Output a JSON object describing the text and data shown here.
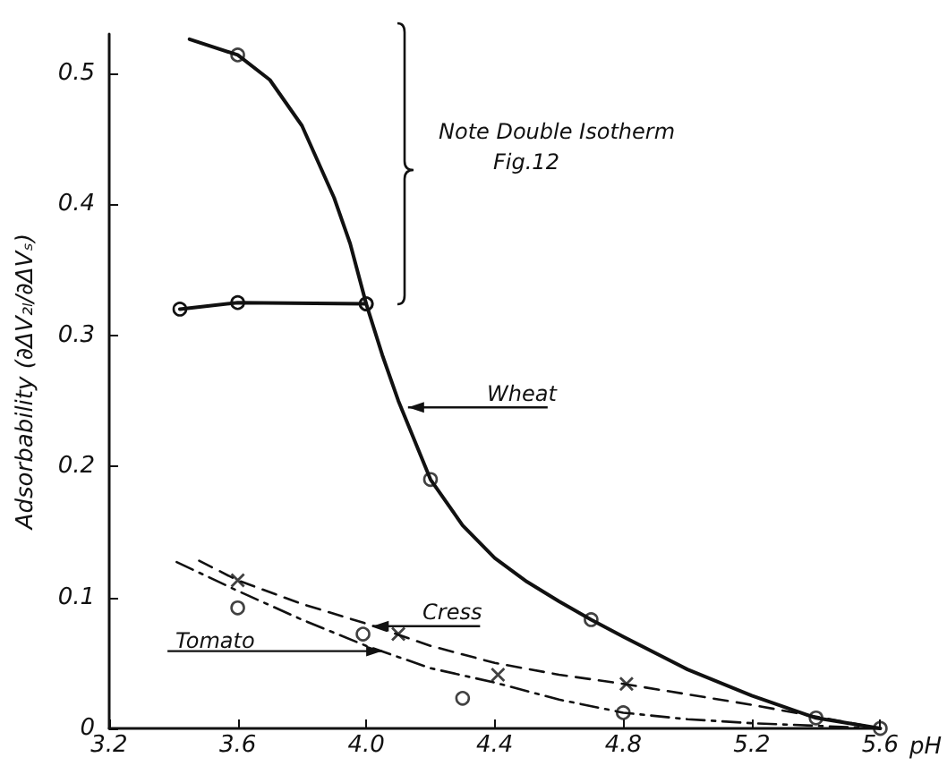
{
  "chart_data": {
    "type": "line",
    "xlabel": "pH",
    "ylabel": "Adsorbability (∂ΔV₂ₗ/∂ΔVₛ)",
    "xlim": [
      3.2,
      5.6
    ],
    "ylim": [
      0,
      0.53
    ],
    "xticks": [
      {
        "value": 3.2,
        "label": "3.2"
      },
      {
        "value": 3.6,
        "label": "3.6"
      },
      {
        "value": 4.0,
        "label": "4.0"
      },
      {
        "value": 4.4,
        "label": "4.4"
      },
      {
        "value": 4.8,
        "label": "4.8"
      },
      {
        "value": 5.2,
        "label": "5.2"
      },
      {
        "value": 5.6,
        "label": "5.6"
      }
    ],
    "yticks": [
      0,
      0.1,
      0.2,
      0.3,
      0.4,
      0.5
    ],
    "grid": false,
    "series": [
      {
        "color": "#111111",
        "line_style": "solid",
        "marker": "none",
        "x": [
          3.45,
          3.6,
          3.7,
          3.8,
          3.9,
          3.95,
          4.0,
          4.05,
          4.1,
          4.2,
          4.3,
          4.4,
          4.5,
          4.6,
          4.7,
          4.8,
          5.0,
          5.2,
          5.4,
          5.6
        ],
        "values": [
          0.526,
          0.514,
          0.495,
          0.46,
          0.405,
          0.37,
          0.324,
          0.285,
          0.25,
          0.19,
          0.155,
          0.13,
          0.112,
          0.097,
          0.083,
          0.07,
          0.045,
          0.025,
          0.008,
          0
        ]
      },
      {
        "type": "scatter",
        "color": "#111111",
        "marker": "circle",
        "x": [
          3.6,
          4.0,
          4.2,
          4.7,
          5.4,
          5.6
        ],
        "values": [
          0.514,
          0.324,
          0.19,
          0.083,
          0.008,
          0
        ]
      },
      {
        "color": "#111111",
        "line_style": "solid",
        "marker": "circle",
        "x": [
          3.42,
          3.6,
          4.0
        ],
        "values": [
          0.32,
          0.325,
          0.324
        ]
      },
      {
        "color": "#111111",
        "line_style": "dashed",
        "marker": "none",
        "x": [
          3.48,
          3.6,
          3.8,
          4.0,
          4.2,
          4.4,
          4.6,
          4.8,
          5.0,
          5.2,
          5.4,
          5.6
        ],
        "values": [
          0.128,
          0.113,
          0.095,
          0.08,
          0.063,
          0.05,
          0.041,
          0.034,
          0.026,
          0.018,
          0.009,
          0
        ]
      },
      {
        "type": "scatter",
        "color": "#111111",
        "marker": "cross",
        "x": [
          3.6,
          4.1,
          4.41,
          4.81
        ],
        "values": [
          0.113,
          0.072,
          0.041,
          0.034
        ]
      },
      {
        "color": "#111111",
        "line_style": "dotted",
        "marker": "none",
        "x": [
          3.41,
          3.6,
          3.8,
          4.0,
          4.2,
          4.4,
          4.6,
          4.8,
          5.0,
          5.2,
          5.4,
          5.6
        ],
        "values": [
          0.127,
          0.105,
          0.083,
          0.063,
          0.046,
          0.035,
          0.022,
          0.012,
          0.007,
          0.004,
          0.002,
          0
        ]
      },
      {
        "type": "scatter",
        "color": "#111111",
        "marker": "circle",
        "x": [
          3.6,
          3.99,
          4.3,
          4.8
        ],
        "values": [
          0.092,
          0.072,
          0.023,
          0.012
        ]
      }
    ],
    "annotations": [
      "Note Double Isotherm\n        Fig.12",
      {
        "text": "Wheat",
        "x": 4.13,
        "y": 0.245
      },
      {
        "text": "Cress",
        "x": 4.02,
        "y": 0.078
      },
      {
        "text": "Tomato",
        "x": 4.05,
        "y": 0.059
      }
    ]
  }
}
